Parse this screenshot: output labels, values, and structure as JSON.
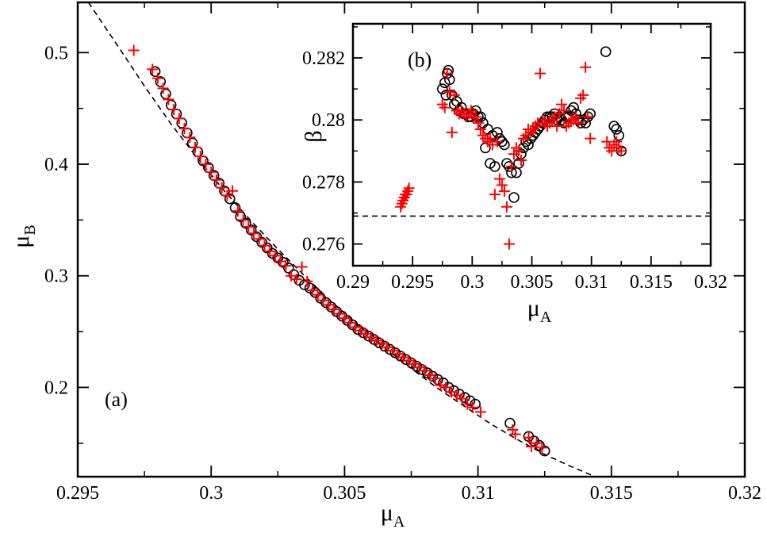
{
  "chart_data": [
    {
      "type": "scatter",
      "panel_label": "(a)",
      "xlabel": "μ",
      "xlabel_sub": "A",
      "ylabel": "μ",
      "ylabel_sub": "B",
      "xlim": [
        0.295,
        0.32
      ],
      "ylim": [
        0.12,
        0.545
      ],
      "xticks": [
        0.295,
        0.3,
        0.305,
        0.31,
        0.315,
        0.32
      ],
      "xtick_labels": [
        "0.295",
        "0.3",
        "0.305",
        "0.31",
        "0.315",
        "0.32"
      ],
      "yticks": [
        0.2,
        0.3,
        0.4,
        0.5
      ],
      "ytick_labels": [
        "0.2",
        "0.3",
        "0.4",
        "0.5"
      ],
      "grid": false,
      "series": [
        {
          "marker": "circle",
          "color": "#000000",
          "x": [
            0.2979,
            0.2981,
            0.2983,
            0.2985,
            0.2987,
            0.2989,
            0.2991,
            0.2993,
            0.2995,
            0.2997,
            0.2999,
            0.3001,
            0.3003,
            0.3005,
            0.3007,
            0.3009,
            0.3011,
            0.3013,
            0.3015,
            0.3017,
            0.3019,
            0.3021,
            0.3023,
            0.3025,
            0.3027,
            0.3029,
            0.3031,
            0.3033,
            0.3035,
            0.3037,
            0.3039,
            0.3041,
            0.3043,
            0.3045,
            0.3047,
            0.3049,
            0.3051,
            0.3053,
            0.3055,
            0.3057,
            0.3059,
            0.3061,
            0.3063,
            0.3065,
            0.3067,
            0.3069,
            0.3071,
            0.3073,
            0.3075,
            0.3077,
            0.3079,
            0.3081,
            0.3083,
            0.3085,
            0.3087,
            0.3089,
            0.3091,
            0.3093,
            0.3095,
            0.3097,
            0.3099,
            0.3112,
            0.3119,
            0.3121,
            0.3123,
            0.3125
          ],
          "y": [
            0.483,
            0.474,
            0.463,
            0.453,
            0.445,
            0.437,
            0.428,
            0.419,
            0.411,
            0.403,
            0.397,
            0.39,
            0.383,
            0.376,
            0.369,
            0.361,
            0.353,
            0.347,
            0.341,
            0.335,
            0.33,
            0.325,
            0.32,
            0.316,
            0.312,
            0.307,
            0.301,
            0.296,
            0.292,
            0.289,
            0.285,
            0.28,
            0.276,
            0.272,
            0.268,
            0.264,
            0.26,
            0.256,
            0.252,
            0.249,
            0.246,
            0.243,
            0.24,
            0.237,
            0.234,
            0.231,
            0.228,
            0.225,
            0.222,
            0.219,
            0.216,
            0.213,
            0.21,
            0.207,
            0.204,
            0.2,
            0.197,
            0.194,
            0.191,
            0.188,
            0.185,
            0.168,
            0.156,
            0.152,
            0.148,
            0.143
          ]
        },
        {
          "marker": "plus",
          "color": "#ff0000",
          "x": [
            0.2971,
            0.2978,
            0.298,
            0.2982,
            0.2984,
            0.2986,
            0.2988,
            0.299,
            0.2992,
            0.2994,
            0.2996,
            0.2998,
            0.3,
            0.3002,
            0.3004,
            0.3006,
            0.3008,
            0.301,
            0.3012,
            0.3014,
            0.3016,
            0.3018,
            0.302,
            0.3022,
            0.3024,
            0.3026,
            0.3028,
            0.303,
            0.3032,
            0.3034,
            0.3036,
            0.3038,
            0.304,
            0.3042,
            0.3044,
            0.3046,
            0.3048,
            0.305,
            0.3052,
            0.3054,
            0.3056,
            0.3058,
            0.306,
            0.3062,
            0.3064,
            0.3066,
            0.3068,
            0.307,
            0.3072,
            0.3074,
            0.3076,
            0.3078,
            0.308,
            0.3082,
            0.3084,
            0.3086,
            0.3088,
            0.309,
            0.3092,
            0.3094,
            0.3096,
            0.3098,
            0.3101,
            0.3113,
            0.3114,
            0.3119,
            0.312,
            0.3122,
            0.3124
          ],
          "y": [
            0.502,
            0.485,
            0.477,
            0.468,
            0.458,
            0.449,
            0.441,
            0.432,
            0.424,
            0.415,
            0.407,
            0.4,
            0.393,
            0.386,
            0.379,
            0.372,
            0.376,
            0.358,
            0.35,
            0.344,
            0.338,
            0.333,
            0.327,
            0.322,
            0.318,
            0.313,
            0.309,
            0.3,
            0.297,
            0.308,
            0.295,
            0.287,
            0.283,
            0.278,
            0.274,
            0.27,
            0.266,
            0.262,
            0.258,
            0.254,
            0.251,
            0.248,
            0.245,
            0.242,
            0.239,
            0.236,
            0.233,
            0.23,
            0.227,
            0.224,
            0.221,
            0.218,
            0.215,
            0.211,
            0.208,
            0.202,
            0.2,
            0.196,
            0.193,
            0.19,
            0.185,
            0.182,
            0.178,
            0.162,
            0.158,
            0.155,
            0.147,
            0.15,
            0.146
          ]
        },
        {
          "line": "dashed",
          "color": "#000000",
          "x": [
            0.2954,
            0.2965,
            0.2975,
            0.2985,
            0.2995,
            0.3005,
            0.3015,
            0.3025,
            0.3035,
            0.3045,
            0.3055,
            0.3065,
            0.3075,
            0.3085,
            0.3095,
            0.3105,
            0.3115,
            0.3125,
            0.3135,
            0.3145,
            0.3155,
            0.3161
          ],
          "y": [
            0.545,
            0.506,
            0.47,
            0.436,
            0.405,
            0.376,
            0.349,
            0.324,
            0.3,
            0.277,
            0.256,
            0.236,
            0.217,
            0.199,
            0.183,
            0.167,
            0.153,
            0.14,
            0.129,
            0.119,
            0.11,
            0.105
          ]
        }
      ]
    },
    {
      "type": "scatter",
      "panel_label": "(b)",
      "xlabel": "μ",
      "xlabel_sub": "A",
      "ylabel": "β",
      "xlim": [
        0.29,
        0.32
      ],
      "ylim": [
        0.2753,
        0.2831
      ],
      "xticks": [
        0.29,
        0.295,
        0.3,
        0.305,
        0.31,
        0.315,
        0.32
      ],
      "xtick_labels": [
        "0.29",
        "0.295",
        "0.3",
        "0.305",
        "0.31",
        "0.315",
        "0.32"
      ],
      "yticks": [
        0.276,
        0.278,
        0.28,
        0.282
      ],
      "ytick_labels": [
        "0.276",
        "0.278",
        "0.28",
        "0.282"
      ],
      "grid": false,
      "series": [
        {
          "marker": "circle",
          "color": "#000000",
          "x": [
            0.2975,
            0.2977,
            0.2978,
            0.2979,
            0.298,
            0.2981,
            0.2983,
            0.2985,
            0.2987,
            0.2989,
            0.2991,
            0.2993,
            0.2995,
            0.2997,
            0.2999,
            0.3001,
            0.3003,
            0.3005,
            0.3007,
            0.3009,
            0.3011,
            0.3013,
            0.3015,
            0.3017,
            0.3019,
            0.3021,
            0.3023,
            0.3025,
            0.3027,
            0.3029,
            0.3031,
            0.3033,
            0.3035,
            0.3037,
            0.3039,
            0.3041,
            0.3043,
            0.3045,
            0.3047,
            0.3049,
            0.3051,
            0.3053,
            0.3055,
            0.3057,
            0.3059,
            0.3061,
            0.3063,
            0.3065,
            0.3067,
            0.3069,
            0.3071,
            0.3073,
            0.3075,
            0.3077,
            0.3079,
            0.3081,
            0.3083,
            0.3085,
            0.3087,
            0.3089,
            0.3091,
            0.3093,
            0.3095,
            0.3097,
            0.3099,
            0.3112,
            0.3119,
            0.3121,
            0.3123,
            0.3125
          ],
          "y": [
            0.281,
            0.2812,
            0.2808,
            0.2815,
            0.2816,
            0.2813,
            0.2808,
            0.2805,
            0.2806,
            0.2803,
            0.2804,
            0.2802,
            0.2802,
            0.2801,
            0.2801,
            0.2802,
            0.2803,
            0.2801,
            0.2801,
            0.2799,
            0.2791,
            0.2797,
            0.2786,
            0.2795,
            0.2785,
            0.2796,
            0.2794,
            0.2793,
            0.2792,
            0.2786,
            0.2785,
            0.2783,
            0.2775,
            0.2783,
            0.2786,
            0.2789,
            0.2791,
            0.2793,
            0.2792,
            0.2794,
            0.2795,
            0.2796,
            0.2797,
            0.2798,
            0.2799,
            0.28,
            0.2801,
            0.2801,
            0.2801,
            0.2802,
            0.28,
            0.2801,
            0.28,
            0.2799,
            0.2801,
            0.2801,
            0.2803,
            0.2804,
            0.2802,
            0.28,
            0.2799,
            0.28,
            0.2799,
            0.2801,
            0.2802,
            0.2822,
            0.2798,
            0.2797,
            0.2795,
            0.279
          ]
        },
        {
          "marker": "plus",
          "color": "#ff0000",
          "x": [
            0.294,
            0.2941,
            0.2942,
            0.2943,
            0.2944,
            0.2945,
            0.2946,
            0.2947,
            0.2975,
            0.2977,
            0.2979,
            0.2981,
            0.2983,
            0.2985,
            0.2987,
            0.2989,
            0.2991,
            0.2993,
            0.2995,
            0.2997,
            0.2999,
            0.3001,
            0.3003,
            0.3005,
            0.3007,
            0.3009,
            0.3011,
            0.3013,
            0.3015,
            0.3017,
            0.3019,
            0.3021,
            0.3023,
            0.3025,
            0.3027,
            0.3029,
            0.3031,
            0.3033,
            0.3035,
            0.3037,
            0.3039,
            0.3041,
            0.3043,
            0.3045,
            0.3047,
            0.3049,
            0.3051,
            0.3053,
            0.3055,
            0.3057,
            0.3059,
            0.3061,
            0.3063,
            0.3065,
            0.3067,
            0.3069,
            0.3071,
            0.3073,
            0.3075,
            0.3077,
            0.3079,
            0.3081,
            0.3083,
            0.3085,
            0.3087,
            0.3089,
            0.3091,
            0.3093,
            0.3095,
            0.3097,
            0.3099,
            0.3113,
            0.3115,
            0.3117,
            0.3119,
            0.3121,
            0.3123,
            0.3125
          ],
          "y": [
            0.2772,
            0.2773,
            0.2774,
            0.2775,
            0.2776,
            0.2776,
            0.2777,
            0.2778,
            0.2805,
            0.2804,
            0.2815,
            0.2809,
            0.2796,
            0.2808,
            0.2803,
            0.2802,
            0.2803,
            0.2802,
            0.2801,
            0.2802,
            0.2803,
            0.2801,
            0.2801,
            0.2799,
            0.2797,
            0.2795,
            0.2794,
            0.2793,
            0.2794,
            0.2792,
            0.2776,
            0.2793,
            0.2781,
            0.2779,
            0.2777,
            0.2772,
            0.276,
            0.2785,
            0.2789,
            0.2791,
            0.279,
            0.2787,
            0.2794,
            0.2795,
            0.2797,
            0.2796,
            0.2797,
            0.2798,
            0.2799,
            0.2815,
            0.28,
            0.2799,
            0.2798,
            0.2799,
            0.28,
            0.2801,
            0.2798,
            0.2802,
            0.2805,
            0.2803,
            0.2798,
            0.2799,
            0.28,
            0.28,
            0.2801,
            0.2799,
            0.2807,
            0.2808,
            0.2817,
            0.2801,
            0.2794,
            0.2793,
            0.2791,
            0.279,
            0.2792,
            0.2793,
            0.2791,
            0.279
          ]
        },
        {
          "line": "dashed",
          "color": "#000000",
          "x": [
            0.29,
            0.32
          ],
          "y": [
            0.2769,
            0.2769
          ]
        }
      ]
    }
  ]
}
